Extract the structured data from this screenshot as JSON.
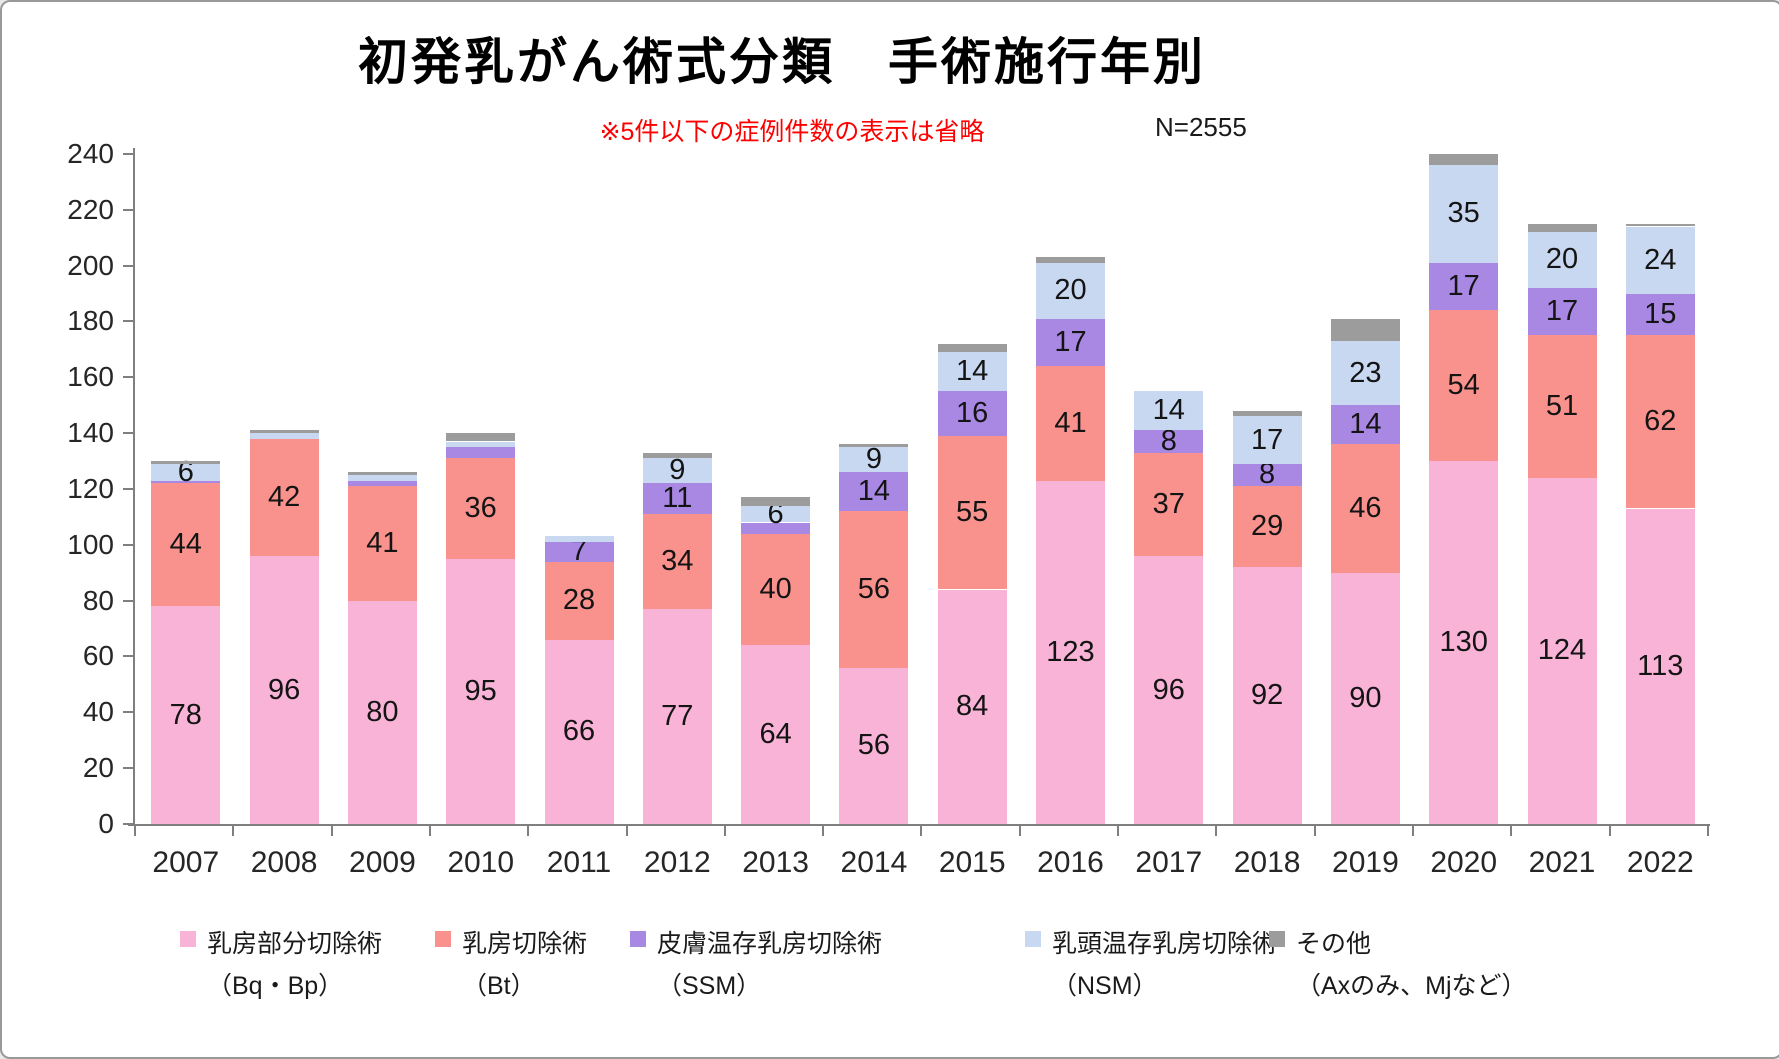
{
  "title": "初発乳がん術式分類　手術施行年別",
  "annotation": {
    "note": "※5件以下の症例件数の表示は省略",
    "note_color": "#ff0000",
    "n_label": "N=2555"
  },
  "chart_data": {
    "type": "bar",
    "stacked": true,
    "title": "初発乳がん術式分類　手術施行年別",
    "xlabel": "",
    "ylabel": "",
    "ylim": [
      0,
      240
    ],
    "ytick_step": 20,
    "grid": false,
    "legend_position": "bottom",
    "data_label_min": 6,
    "categories": [
      "2007",
      "2008",
      "2009",
      "2010",
      "2011",
      "2012",
      "2013",
      "2014",
      "2015",
      "2016",
      "2017",
      "2018",
      "2019",
      "2020",
      "2021",
      "2022"
    ],
    "series": [
      {
        "name": "乳房部分切除術",
        "code": "（Bq・Bp）",
        "color": "#f9b3d6",
        "show_labels": true,
        "values": [
          78,
          96,
          80,
          95,
          66,
          77,
          64,
          56,
          84,
          123,
          96,
          92,
          90,
          130,
          124,
          113
        ]
      },
      {
        "name": "乳房切除術",
        "code": "（Bt）",
        "color": "#f9928c",
        "show_labels": true,
        "values": [
          44,
          42,
          41,
          36,
          28,
          34,
          40,
          56,
          55,
          41,
          37,
          29,
          46,
          54,
          51,
          62
        ]
      },
      {
        "name": "皮膚温存乳房切除術",
        "code": "（SSM）",
        "color": "#a988e4",
        "show_labels": true,
        "values": [
          1,
          0,
          2,
          4,
          7,
          11,
          4,
          14,
          16,
          17,
          8,
          8,
          14,
          17,
          17,
          15
        ]
      },
      {
        "name": "乳頭温存乳房切除術",
        "code": "（NSM）",
        "color": "#c9d8f1",
        "show_labels": true,
        "values": [
          6,
          2,
          2,
          2,
          2,
          9,
          6,
          9,
          14,
          20,
          14,
          17,
          23,
          35,
          20,
          24
        ]
      },
      {
        "name": "その他",
        "code": "（Axのみ、Mjなど）",
        "color": "#9c9c9c",
        "show_labels": false,
        "values": [
          1,
          1,
          1,
          3,
          0,
          2,
          3,
          1,
          3,
          2,
          0,
          2,
          8,
          4,
          3,
          1
        ]
      }
    ]
  }
}
